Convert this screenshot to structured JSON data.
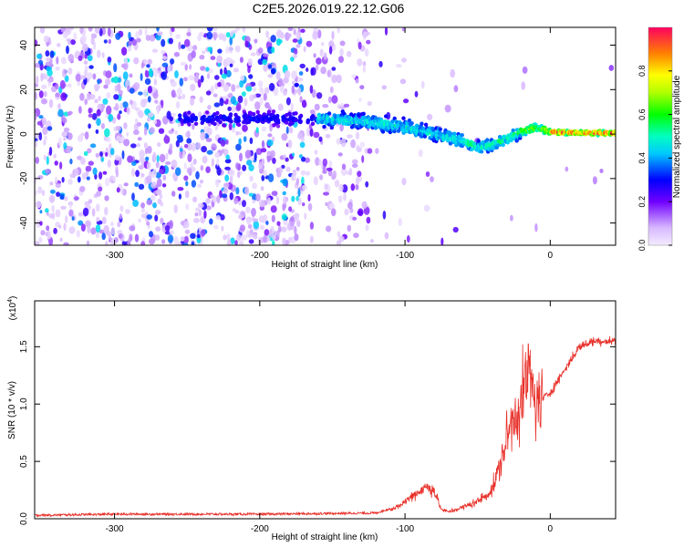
{
  "title": "C2E5.2026.019.22.12.G06",
  "chart_data": [
    {
      "type": "heatmap",
      "xlabel": "Height of straight line (km)",
      "ylabel": "Frequency (Hz)",
      "xlim": [
        -355,
        45
      ],
      "ylim": [
        -50,
        48
      ],
      "xticks": [
        -300,
        -200,
        -100,
        0
      ],
      "xtick_labels": [
        "-300",
        "-200",
        "-100",
        "0"
      ],
      "yticks": [
        -40,
        -20,
        0,
        20,
        40
      ],
      "ytick_labels": [
        "-40",
        "-20",
        "0",
        "20",
        "40"
      ],
      "ridge_frequency_track": {
        "x_km": [
          -250,
          -220,
          -160,
          -140,
          -120,
          -100,
          -80,
          -60,
          -50,
          -40,
          -30,
          -20,
          -10,
          0,
          20,
          45
        ],
        "freq_hz": [
          7,
          7,
          7,
          6,
          5,
          3,
          0,
          -3,
          -6,
          -5,
          -2,
          1,
          3,
          1,
          0.5,
          0.5
        ]
      },
      "colorbar": {
        "label": "Normalized spectral amplitude",
        "range": [
          0,
          1
        ],
        "ticks": [
          0.0,
          0.2,
          0.4,
          0.6,
          0.8
        ],
        "tick_labels": [
          "0.0",
          "0.2",
          "0.4",
          "0.6",
          "0.8"
        ]
      }
    },
    {
      "type": "line",
      "xlabel": "Height of straight line (km)",
      "ylabel": "SNR (10 * v/v)",
      "multiplier_label": "(x10",
      "multiplier_exp": "4",
      "multiplier_close": ")",
      "xlim": [
        -355,
        45
      ],
      "ylim": [
        0,
        1.9
      ],
      "xticks": [
        -300,
        -200,
        -100,
        0
      ],
      "xtick_labels": [
        "-300",
        "-200",
        "-100",
        "0"
      ],
      "yticks": [
        0.0,
        0.5,
        1.0,
        1.5
      ],
      "ytick_labels": [
        "0.0",
        "0.5",
        "1.0",
        "1.5"
      ],
      "series": [
        {
          "name": "SNR",
          "color": "#e8302a",
          "x": [
            -355,
            -300,
            -200,
            -120,
            -105,
            -95,
            -85,
            -80,
            -75,
            -70,
            -60,
            -50,
            -40,
            -35,
            -30,
            -25,
            -20,
            -15,
            -10,
            0,
            10,
            20,
            30,
            45
          ],
          "y": [
            0.02,
            0.03,
            0.03,
            0.04,
            0.1,
            0.2,
            0.28,
            0.25,
            0.08,
            0.06,
            0.1,
            0.15,
            0.25,
            0.45,
            0.7,
            0.9,
            1.0,
            1.3,
            1.0,
            1.1,
            1.3,
            1.5,
            1.55,
            1.55
          ]
        }
      ]
    }
  ]
}
